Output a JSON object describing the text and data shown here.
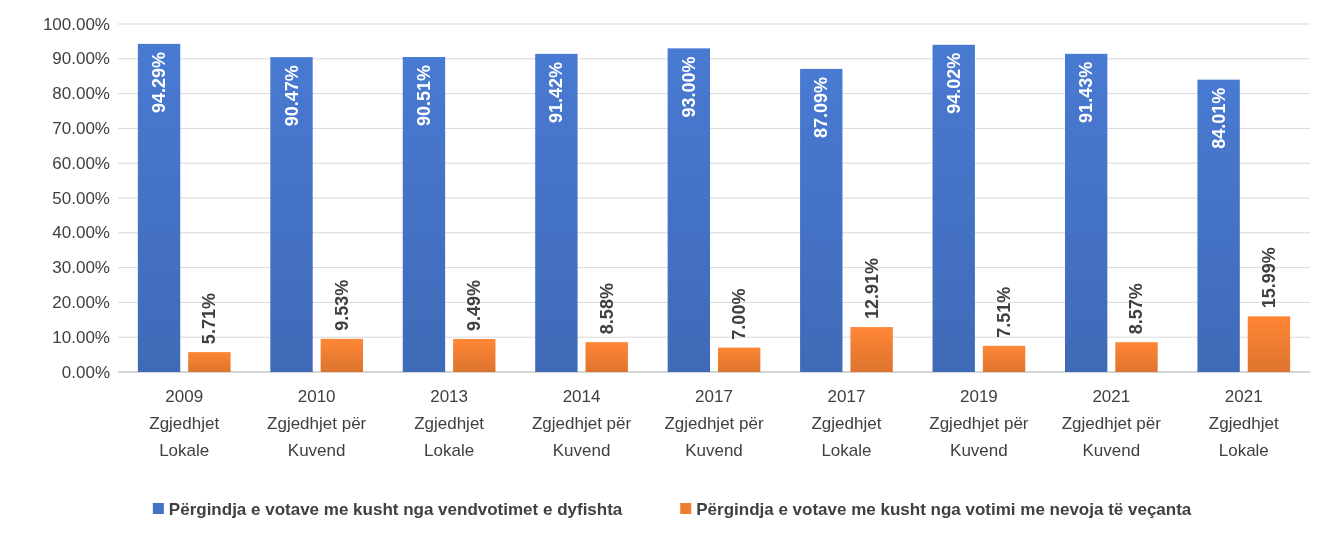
{
  "chart_data": {
    "type": "bar",
    "categories": [
      "2009\nZgjedhjet\nLokale",
      "2010\nZgjedhjet për\nKuvend",
      "2013\nZgjedhjet\nLokale",
      "2014\nZgjedhjet për\nKuvend",
      "2017\nZgjedhjet për\nKuvend",
      "2017\nZgjedhjet\nLokale",
      "2019\nZgjedhjet për\nKuvend",
      "2021\nZgjedhjet për\nKuvend",
      "2021\nZgjedhjet\nLokale"
    ],
    "series": [
      {
        "name": "Përgindja e votave me kusht nga vendvotimet e dyfishta",
        "color": "#4472c4",
        "values": [
          94.29,
          90.47,
          90.51,
          91.42,
          93.0,
          87.09,
          94.02,
          91.43,
          84.01
        ],
        "value_labels": [
          "94.29%",
          "90.47%",
          "90.51%",
          "91.42%",
          "93.00%",
          "87.09%",
          "94.02%",
          "91.43%",
          "84.01%"
        ]
      },
      {
        "name": "Përgindja e votave me kusht nga votimi me nevoja të veçanta",
        "color": "#ed7d31",
        "values": [
          5.71,
          9.53,
          9.49,
          8.58,
          7.0,
          12.91,
          7.51,
          8.57,
          15.99
        ],
        "value_labels": [
          "5.71%",
          "9.53%",
          "9.49%",
          "8.58%",
          "7.00%",
          "12.91%",
          "7.51%",
          "8.57%",
          "15.99%"
        ]
      }
    ],
    "ylim": [
      0,
      100
    ],
    "yticks": [
      {
        "value": 0,
        "label": "0.00%"
      },
      {
        "value": 10,
        "label": "10.00%"
      },
      {
        "value": 20,
        "label": "20.00%"
      },
      {
        "value": 30,
        "label": "30.00%"
      },
      {
        "value": 40,
        "label": "40.00%"
      },
      {
        "value": 50,
        "label": "50.00%"
      },
      {
        "value": 60,
        "label": "60.00%"
      },
      {
        "value": 70,
        "label": "70.00%"
      },
      {
        "value": 80,
        "label": "80.00%"
      },
      {
        "value": 90,
        "label": "90.00%"
      },
      {
        "value": 100,
        "label": "100.00%"
      }
    ],
    "grid": "y",
    "legend": "bottom"
  }
}
